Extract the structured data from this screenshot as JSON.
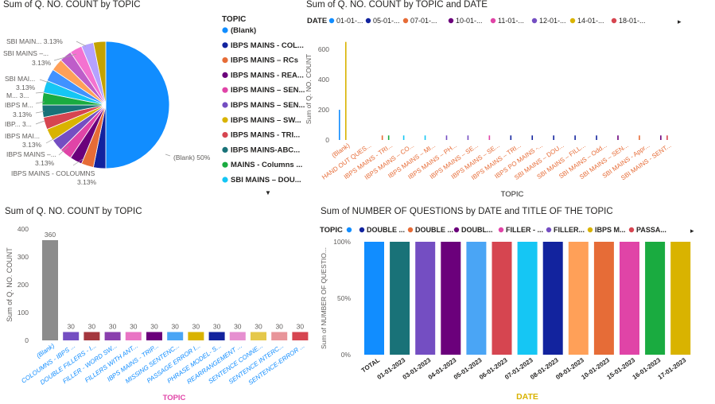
{
  "panel1": {
    "title": "Sum of Q. NO. COUNT by TOPIC",
    "legend_title": "TOPIC",
    "legend_items": [
      {
        "label": "(Blank)",
        "color": "#118DFF"
      },
      {
        "label": "IBPS MAINS - COL...",
        "color": "#12239E"
      },
      {
        "label": "IBPS MAINS – RCs",
        "color": "#E66C37"
      },
      {
        "label": "IBPS MAINS - REA...",
        "color": "#6B007B"
      },
      {
        "label": "IBPS MAINS – SEN...",
        "color": "#E044A7"
      },
      {
        "label": "IBPS MAINS – SEN...",
        "color": "#744EC2"
      },
      {
        "label": "IBPS MAINS – SW...",
        "color": "#D9B300"
      },
      {
        "label": "IBPS MAINS - TRI...",
        "color": "#D64550"
      },
      {
        "label": "IBPS MAINS-ABC...",
        "color": "#197278"
      },
      {
        "label": "MAINS - Columns ...",
        "color": "#1AAB40"
      },
      {
        "label": "SBI MAINS – DOU...",
        "color": "#15C6F4"
      }
    ],
    "pie_labels": [
      {
        "text": "(Blank) 50%"
      },
      {
        "text": "SBI MAIN... 3.13%"
      },
      {
        "text": "SBI MAINS –..."
      },
      {
        "text": "3.13%"
      },
      {
        "text": "SBI MAI..."
      },
      {
        "text": "3.13%"
      },
      {
        "text": "M... 3..."
      },
      {
        "text": "IBPS M..."
      },
      {
        "text": "3.13%"
      },
      {
        "text": "IBP... 3..."
      },
      {
        "text": "IBPS MAI..."
      },
      {
        "text": "3.13%"
      },
      {
        "text": "IBPS MAINS –..."
      },
      {
        "text": "3.13%"
      },
      {
        "text": "IBPS MAINS - COLOUMNS"
      },
      {
        "text": "3.13%"
      }
    ],
    "scroll_arrow": "▼"
  },
  "panel2": {
    "title": "Sum of Q. NO. COUNT by TOPIC and DATE",
    "legend_title": "DATE",
    "legend_items": [
      {
        "label": "01-01-...",
        "color": "#118DFF"
      },
      {
        "label": "05-01-...",
        "color": "#12239E"
      },
      {
        "label": "07-01-...",
        "color": "#E66C37"
      },
      {
        "label": "10-01-...",
        "color": "#6B007B"
      },
      {
        "label": "11-01-...",
        "color": "#E044A7"
      },
      {
        "label": "12-01-...",
        "color": "#744EC2"
      },
      {
        "label": "14-01-...",
        "color": "#D9B300"
      },
      {
        "label": "18-01-...",
        "color": "#D64550"
      }
    ],
    "legend_arrow": "▸",
    "xlabel": "TOPIC",
    "ylabel": "Sum of Q. NO. COUNT"
  },
  "panel3": {
    "title": "Sum of Q. NO. COUNT by TOPIC",
    "xlabel": "TOPIC",
    "ylabel": "Sum of Q. NO. COUNT"
  },
  "panel4": {
    "title": "Sum of NUMBER OF QUESTIONS by DATE and TITLE OF THE TOPIC",
    "legend_title": "TOPIC",
    "legend_items": [
      {
        "label": "",
        "color": "#118DFF"
      },
      {
        "label": "DOUBLE ...",
        "color": "#12239E"
      },
      {
        "label": "DOUBLE ...",
        "color": "#E66C37"
      },
      {
        "label": "DOUBL...",
        "color": "#6B007B"
      },
      {
        "label": "FILLER - ...",
        "color": "#E044A7"
      },
      {
        "label": "FILLER...",
        "color": "#744EC2"
      },
      {
        "label": "IBPS M...",
        "color": "#D9B300"
      },
      {
        "label": "PASSA...",
        "color": "#D64550"
      }
    ],
    "legend_arrow": "▸",
    "xlabel": "DATE",
    "ylabel": "Sum of NUMBER OF QUESTIO..."
  },
  "chart_data": [
    {
      "type": "pie",
      "title": "Sum of Q. NO. COUNT by TOPIC",
      "slices": [
        {
          "label": "(Blank)",
          "value": 50,
          "color": "#118DFF"
        },
        {
          "label": "IBPS MAINS - COLOUMNS",
          "value": 3.125,
          "color": "#12239E"
        },
        {
          "label": "IBPS MAINS – RCs",
          "value": 3.125,
          "color": "#E66C37"
        },
        {
          "label": "IBPS MAINS - REA...",
          "value": 3.125,
          "color": "#6B007B"
        },
        {
          "label": "IBPS MAINS – SEN...",
          "value": 3.125,
          "color": "#E044A7"
        },
        {
          "label": "IBPS MAINS – SEN...",
          "value": 3.125,
          "color": "#744EC2"
        },
        {
          "label": "IBPS MAINS – SW...",
          "value": 3.125,
          "color": "#D9B300"
        },
        {
          "label": "IBPS MAINS - TRI...",
          "value": 3.125,
          "color": "#D64550"
        },
        {
          "label": "IBPS MAINS-ABC...",
          "value": 3.125,
          "color": "#197278"
        },
        {
          "label": "MAINS - Columns ...",
          "value": 3.125,
          "color": "#1AAB40"
        },
        {
          "label": "SBI MAINS – DOU...",
          "value": 3.125,
          "color": "#15C6F4"
        },
        {
          "label": "",
          "value": 3.125,
          "color": "#4092FF"
        },
        {
          "label": "",
          "value": 3.125,
          "color": "#FFA058"
        },
        {
          "label": "",
          "value": 3.125,
          "color": "#BE5DC9"
        },
        {
          "label": "",
          "value": 3.125,
          "color": "#F472D0"
        },
        {
          "label": "",
          "value": 3.125,
          "color": "#B5A1FF"
        },
        {
          "label": "",
          "value": 3.125,
          "color": "#C4A200"
        }
      ]
    },
    {
      "type": "bar",
      "title": "Sum of Q. NO. COUNT by TOPIC and DATE",
      "xlabel": "TOPIC",
      "ylabel": "Sum of Q. NO. COUNT",
      "ylim": [
        0,
        680
      ],
      "yticks": [
        0,
        200,
        400,
        600
      ],
      "categories": [
        "(Blank)",
        "HAND OUT QUES...",
        "IBPS MAINS - TRI...",
        "IBPS MAINS – CO...",
        "IBPS MAINS – MI...",
        "IBPS MAINS – PH...",
        "IBPS MAINS – SE...",
        "IBPS MAINS – SE...",
        "IBPS MAINS – TRI...",
        "IBPS PO MAINS -...",
        "SBI MAINS – DOU...",
        "SBI MAINS – FILL...",
        "SBI MAINS – Odd...",
        "SBI MAINS – SEN...",
        "SBI MAINS - Appr...",
        "SBI MAINS - SENT..."
      ],
      "series": [
        {
          "name": "01-01-...",
          "color": "#118DFF",
          "values": [
            200,
            0,
            0,
            0,
            0,
            0,
            0,
            0,
            0,
            0,
            0,
            0,
            0,
            0,
            0,
            0
          ]
        },
        {
          "name": "05-01-...",
          "color": "#12239E",
          "values": [
            0,
            0,
            0,
            0,
            0,
            0,
            0,
            0,
            30,
            30,
            30,
            30,
            30,
            0,
            0,
            0
          ]
        },
        {
          "name": "07-01-...",
          "color": "#E66C37",
          "values": [
            0,
            0,
            30,
            0,
            0,
            0,
            0,
            0,
            0,
            0,
            0,
            0,
            0,
            0,
            30,
            0
          ]
        },
        {
          "name": "10-01-...",
          "color": "#6B007B",
          "values": [
            0,
            0,
            0,
            0,
            0,
            0,
            0,
            0,
            0,
            0,
            0,
            0,
            0,
            30,
            0,
            30
          ]
        },
        {
          "name": "11-01-...",
          "color": "#E044A7",
          "values": [
            0,
            0,
            0,
            0,
            0,
            0,
            0,
            30,
            0,
            0,
            0,
            0,
            0,
            0,
            0,
            0
          ]
        },
        {
          "name": "12-01-...",
          "color": "#744EC2",
          "values": [
            0,
            0,
            0,
            0,
            0,
            30,
            30,
            0,
            0,
            0,
            0,
            0,
            0,
            0,
            0,
            0
          ]
        },
        {
          "name": "14-01-...",
          "color": "#D9B300",
          "values": [
            650,
            0,
            0,
            0,
            0,
            0,
            0,
            0,
            0,
            0,
            0,
            0,
            0,
            0,
            0,
            0
          ]
        },
        {
          "name": "18-01-...",
          "color": "#D64550",
          "values": [
            0,
            0,
            0,
            0,
            0,
            0,
            0,
            0,
            0,
            0,
            0,
            0,
            0,
            0,
            0,
            30
          ]
        },
        {
          "name": "",
          "color": "#1AAB40",
          "values": [
            0,
            0,
            30,
            0,
            0,
            0,
            0,
            0,
            0,
            0,
            0,
            0,
            0,
            0,
            0,
            0
          ]
        },
        {
          "name": "",
          "color": "#15C6F4",
          "values": [
            0,
            0,
            0,
            30,
            30,
            0,
            0,
            0,
            0,
            0,
            0,
            0,
            0,
            0,
            0,
            0
          ]
        }
      ]
    },
    {
      "type": "bar",
      "title": "Sum of Q. NO. COUNT by TOPIC",
      "xlabel": "TOPIC",
      "ylabel": "Sum of Q. NO. COUNT",
      "ylim": [
        0,
        400
      ],
      "yticks": [
        0,
        100,
        200,
        300,
        400
      ],
      "categories": [
        "(Blank)",
        "COLOUMNS - IBPS ...",
        "DOUBLE FILLERS - I...",
        "FILLER - WORD SW...",
        "FILLERS WITH ANT...",
        "IBPS MAINS - TRIP...",
        "MISSING SENTENC...",
        "PASSAGE ERROR I...",
        "PHRASE MODEL- S...",
        "REARRANGEMENT ...",
        "SENTENCE CONNE...",
        "SENTENCE INTERC...",
        "SENTENCE-ERROR ..."
      ],
      "values": [
        360,
        30,
        30,
        30,
        30,
        30,
        30,
        30,
        30,
        30,
        30,
        30,
        30
      ],
      "colors": [
        "#8C8C8C",
        "#744EC2",
        "#A4373E",
        "#8A3FAE",
        "#E974C4",
        "#6B007B",
        "#4AA5F5",
        "#D9B300",
        "#12239E",
        "#E68FD0",
        "#E5C84A",
        "#E8959A",
        "#D64550"
      ],
      "data_labels": [
        "360",
        "30",
        "30",
        "30",
        "30",
        "30",
        "30",
        "30",
        "30",
        "30",
        "30",
        "30",
        "30"
      ]
    },
    {
      "type": "bar",
      "title": "Sum of NUMBER OF QUESTIONS by DATE and TITLE OF THE TOPIC",
      "xlabel": "DATE",
      "ylabel": "Sum of NUMBER OF QUESTIO...",
      "ylim": [
        0,
        100
      ],
      "yticks": [
        "0%",
        "50%",
        "100%"
      ],
      "stacked_100": true,
      "categories": [
        "TOTAL",
        "01-01-2023",
        "03-01-2023",
        "04-01-2023",
        "05-01-2023",
        "06-01-2023",
        "07-01-2023",
        "08-01-2023",
        "09-01-2023",
        "10-01-2023",
        "15-01-2023",
        "16-01-2023",
        "17-01-2023"
      ],
      "values": [
        100,
        100,
        100,
        100,
        100,
        100,
        100,
        100,
        100,
        100,
        100,
        100,
        100
      ],
      "colors": [
        "#118DFF",
        "#197278",
        "#744EC2",
        "#6B007B",
        "#4AA5F5",
        "#D64550",
        "#15C6F4",
        "#12239E",
        "#FFA058",
        "#E66C37",
        "#E044A7",
        "#1AAB40",
        "#D9B300"
      ]
    }
  ]
}
